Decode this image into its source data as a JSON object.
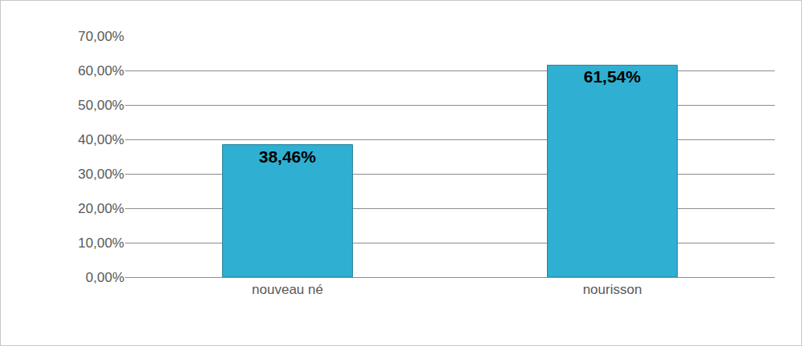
{
  "chart_data": {
    "type": "bar",
    "categories": [
      "nouveau né",
      "nourisson"
    ],
    "values": [
      38.46,
      61.54
    ],
    "value_labels": [
      "38,46%",
      "61,54%"
    ],
    "data_labels": true,
    "color": "#2fb0d2",
    "ylim": [
      0,
      70
    ],
    "yticks": [
      {
        "value": 0,
        "label": "0,00%"
      },
      {
        "value": 10,
        "label": "10,00%"
      },
      {
        "value": 20,
        "label": "20,00%"
      },
      {
        "value": 30,
        "label": "30,00%"
      },
      {
        "value": 40,
        "label": "40,00%"
      },
      {
        "value": 50,
        "label": "50,00%"
      },
      {
        "value": 60,
        "label": "60,00%"
      },
      {
        "value": 70,
        "label": "70,00%"
      }
    ],
    "grid": true
  }
}
